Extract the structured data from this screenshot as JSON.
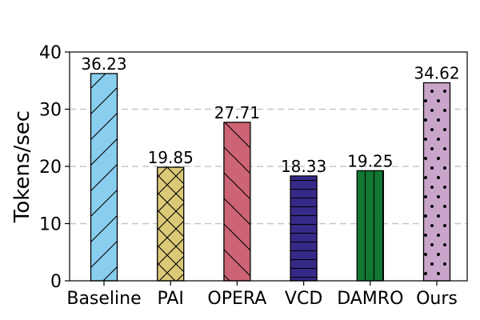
{
  "chart_data": {
    "type": "bar",
    "title": "",
    "xlabel": "",
    "ylabel": "Tokens/sec",
    "ylim": [
      0,
      40
    ],
    "yticks": [
      0,
      10,
      20,
      30,
      40
    ],
    "grid": "horizontal dashed",
    "categories": [
      "Baseline",
      "PAI",
      "OPERA",
      "VCD",
      "DAMRO",
      "Ours"
    ],
    "values": [
      36.23,
      19.85,
      27.71,
      18.33,
      19.25,
      34.62
    ],
    "data_labels": [
      "36.23",
      "19.85",
      "27.71",
      "18.33",
      "19.25",
      "34.62"
    ],
    "bar_colors": [
      "#89ceee",
      "#dbc978",
      "#cc6475",
      "#362a88",
      "#117733",
      "#c9a5cb"
    ],
    "bar_hatches": [
      "forward-slash",
      "cross-diagonal",
      "back-slash",
      "horizontal",
      "vertical",
      "dots"
    ]
  }
}
